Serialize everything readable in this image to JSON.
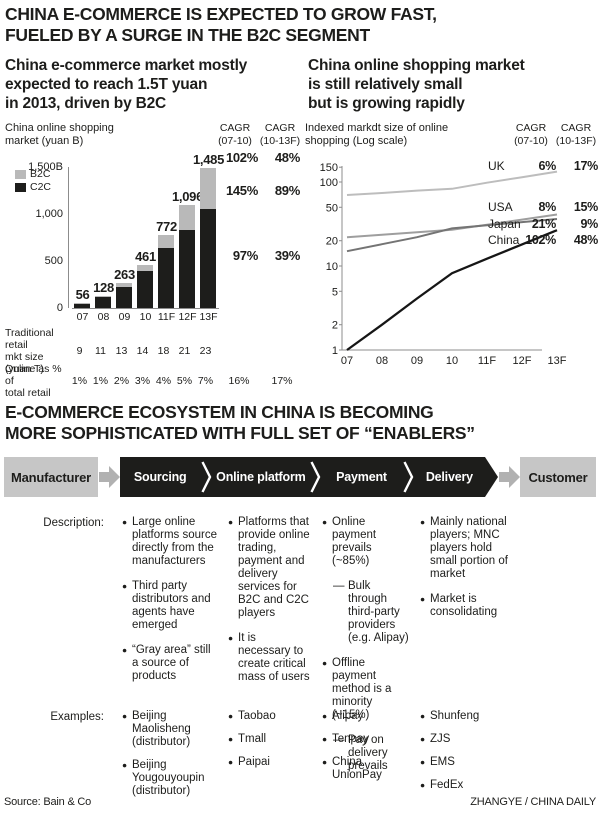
{
  "page": {
    "headline_line1": "CHINA E-COMMERCE IS EXPECTED TO GROW FAST,",
    "headline_line2": "FUELED BY A SURGE IN THE B2C SEGMENT",
    "source": "Source: Bain & Co",
    "credit": "ZHANGYE / CHINA DAILY"
  },
  "left_panel": {
    "title_lines": [
      "China e-commerce market mostly",
      "expected to reach 1.5T yuan",
      "in 2013, driven by B2C"
    ],
    "axis_note_lines": [
      "China online shopping",
      "market (yuan B)"
    ],
    "cagr_cols": [
      {
        "l1": "CAGR",
        "l2": "(07-10)"
      },
      {
        "l1": "CAGR",
        "l2": "(10-13F)"
      }
    ],
    "legend": [
      {
        "label": "B2C",
        "color": "#b9b9b9"
      },
      {
        "label": "C2C",
        "color": "#1d1d1b"
      }
    ],
    "table_row_labels": [
      [
        "Traditional retail",
        "mkt size (yuan T)"
      ],
      [
        "Online as % of",
        "total retail"
      ]
    ]
  },
  "right_panel": {
    "title_lines": [
      "China online shopping market",
      "is still relatively small",
      "but is growing rapidly"
    ],
    "axis_note_lines": [
      "Indexed markdt size of online",
      "shopping (Log scale)"
    ],
    "cagr_cols": [
      {
        "l1": "CAGR",
        "l2": "(07-10)"
      },
      {
        "l1": "CAGR",
        "l2": "(10-13F)"
      }
    ]
  },
  "chart_data": [
    {
      "type": "bar",
      "stacked": true,
      "title": "China e-commerce market mostly expected to reach 1.5T yuan in 2013, driven by B2C",
      "ylabel": "China online shopping market (yuan B)",
      "categories": [
        "07",
        "08",
        "09",
        "10",
        "11F",
        "12F",
        "13F"
      ],
      "totals": [
        56,
        128,
        263,
        461,
        772,
        1096,
        1485
      ],
      "total_labels": [
        "56",
        "128",
        "263",
        "461",
        "772",
        "1,096",
        "1,485"
      ],
      "series": [
        {
          "name": "C2C",
          "color": "#1d1d1b",
          "values": [
            50,
            120,
            225,
            390,
            640,
            830,
            1050
          ]
        },
        {
          "name": "B2C",
          "color": "#b9b9b9",
          "values": [
            6,
            8,
            38,
            71,
            132,
            266,
            435
          ]
        }
      ],
      "ylim": [
        0,
        1500
      ],
      "y_ticks": [
        1500,
        1000,
        500,
        0
      ],
      "y_tick_labels": [
        "1,500B",
        "1,000",
        "500",
        "0"
      ],
      "cagr_annotations": [
        {
          "segment": "Total",
          "v1": "102%",
          "v2": "48%"
        },
        {
          "segment": "B2C",
          "v1": "145%",
          "v2": "89%"
        },
        {
          "segment": "C2C",
          "v1": "97%",
          "v2": "39%"
        }
      ],
      "traditional_retail_yuan_T": [
        "9",
        "11",
        "13",
        "14",
        "18",
        "21",
        "23"
      ],
      "online_pct_of_total_retail": [
        "1%",
        "1%",
        "2%",
        "3%",
        "4%",
        "5%",
        "7%"
      ],
      "online_pct_cagr": [
        "16%",
        "17%"
      ]
    },
    {
      "type": "line",
      "title": "China online shopping market is still relatively small but is growing rapidly",
      "ylabel": "Indexed markdt size of online shopping (Log scale)",
      "log_scale": true,
      "x": [
        "07",
        "08",
        "09",
        "10",
        "11F",
        "12F",
        "13F"
      ],
      "ylim": [
        1,
        150
      ],
      "y_ticks": [
        150,
        100,
        50,
        20,
        10,
        5,
        2,
        1
      ],
      "series": [
        {
          "name": "UK",
          "color": "#bdbdbd",
          "values": [
            70,
            74,
            79,
            83,
            98,
            114,
            133
          ],
          "cagr_07_10": "6%",
          "cagr_10_13F": "17%"
        },
        {
          "name": "USA",
          "color": "#9e9e9e",
          "values": [
            22,
            23.5,
            25.2,
            27,
            31,
            35.7,
            41
          ],
          "cagr_07_10": "8%",
          "cagr_10_13F": "15%"
        },
        {
          "name": "Japan",
          "color": "#747474",
          "values": [
            15,
            18.2,
            22,
            28,
            30.5,
            33.3,
            36.3
          ],
          "cagr_07_10": "21%",
          "cagr_10_13F": "9%"
        },
        {
          "name": "China",
          "color": "#161616",
          "values": [
            1,
            2,
            4.1,
            8.2,
            12.2,
            18.1,
            26.7
          ],
          "cagr_07_10": "102%",
          "cagr_10_13F": "48%"
        }
      ]
    }
  ],
  "ecosystem": {
    "heading_line1": "E-COMMERCE ECOSYSTEM IN CHINA IS BECOMING",
    "heading_line2": "MORE SOPHISTICATED WITH FULL SET OF “ENABLERS”",
    "flow": {
      "start": "Manufacturer",
      "stages": [
        "Sourcing",
        "Online platform",
        "Payment",
        "Delivery"
      ],
      "end": "Customer"
    },
    "description_label": "Description:",
    "examples_label": "Examples:",
    "columns": [
      {
        "stage": "Sourcing",
        "description": [
          {
            "text": "Large online platforms source directly from the manufacturers",
            "level": 1
          },
          {
            "text": "Third party distributors and agents have emerged",
            "level": 1
          },
          {
            "text": "“Gray area” still a source of products",
            "level": 1
          }
        ],
        "examples": [
          "Beijing Maolisheng (distributor)",
          "Beijing Yougouyoupin (distributor)"
        ]
      },
      {
        "stage": "Online platform",
        "description": [
          {
            "text": "Platforms that provide online trading, payment and delivery services for B2C and C2C players",
            "level": 1
          },
          {
            "text": "It is necessary to create critical mass of users",
            "level": 1
          }
        ],
        "examples": [
          "Taobao",
          "Tmall",
          "Paipai"
        ]
      },
      {
        "stage": "Payment",
        "description": [
          {
            "text": "Online payment prevails (~85%)",
            "level": 1
          },
          {
            "text": "Bulk through third-party providers (e.g. Alipay)",
            "level": 2
          },
          {
            "text": "Offline payment method is a minority (~15%)",
            "level": 1
          },
          {
            "text": "Pay on delivery prevails",
            "level": 2
          }
        ],
        "examples": [
          "Alipay",
          "Tenpay",
          "China UnionPay"
        ]
      },
      {
        "stage": "Delivery",
        "description": [
          {
            "text": "Mainly national players; MNC players hold small portion of market",
            "level": 1
          },
          {
            "text": "Market is consolidating",
            "level": 1
          }
        ],
        "examples": [
          "Shunfeng",
          "ZJS",
          "EMS",
          "FedEx"
        ]
      }
    ]
  },
  "colors": {
    "ink": "#1d1d1b",
    "bar_b2c": "#b9b9b9",
    "bar_c2c": "#1d1d1b",
    "flow_box_gray": "#c6c6c6",
    "flow_arrow_gray": "#b1b1b1",
    "flow_ribbon_black": "#1d1d1b"
  }
}
